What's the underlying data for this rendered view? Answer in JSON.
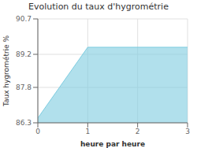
{
  "chart_data": {
    "type": "area",
    "title": "Evolution du taux d'hygrométrie",
    "xlabel": "heure par heure",
    "ylabel": "Taux hygrométrie %",
    "x": [
      0,
      1,
      3
    ],
    "values": [
      86.5,
      89.5,
      89.5
    ],
    "xlim": [
      0,
      3
    ],
    "ylim": [
      86.3,
      90.7
    ],
    "xticks": [
      0,
      1,
      2,
      3
    ],
    "yticks": [
      86.3,
      87.8,
      89.2,
      90.7
    ],
    "color": "#7dcce0",
    "grid": true
  }
}
